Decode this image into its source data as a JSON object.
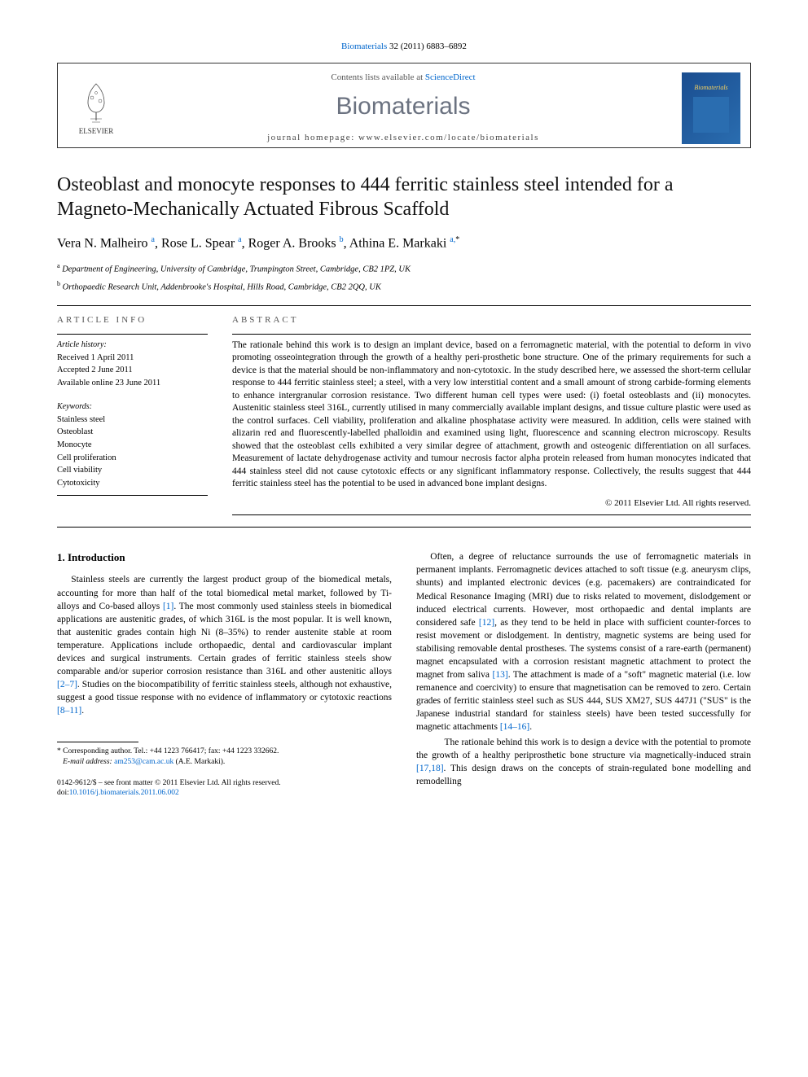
{
  "citation": {
    "journal_link": "Biomaterials",
    "vol_pages": "32 (2011) 6883–6892"
  },
  "header": {
    "publisher": "ELSEVIER",
    "contents_prefix": "Contents lists available at ",
    "contents_link": "ScienceDirect",
    "journal": "Biomaterials",
    "homepage_prefix": "journal homepage: ",
    "homepage_url": "www.elsevier.com/locate/biomaterials",
    "thumb_label": "Biomaterials"
  },
  "article": {
    "title": "Osteoblast and monocyte responses to 444 ferritic stainless steel intended for a Magneto-Mechanically Actuated Fibrous Scaffold",
    "authors_html": "Vera N. Malheiro <sup class='sup-link'>a</sup>, Rose L. Spear <sup class='sup-link'>a</sup>, Roger A. Brooks <sup class='sup-link'>b</sup>, Athina E. Markaki <sup class='sup-link'>a,</sup><sup>*</sup>",
    "affiliations": [
      {
        "sup": "a",
        "text": "Department of Engineering, University of Cambridge, Trumpington Street, Cambridge, CB2 1PZ, UK"
      },
      {
        "sup": "b",
        "text": "Orthopaedic Research Unit, Addenbrooke's Hospital, Hills Road, Cambridge, CB2 2QQ, UK"
      }
    ]
  },
  "info": {
    "heading": "ARTICLE INFO",
    "history_label": "Article history:",
    "received": "Received 1 April 2011",
    "accepted": "Accepted 2 June 2011",
    "online": "Available online 23 June 2011",
    "keywords_label": "Keywords:",
    "keywords": [
      "Stainless steel",
      "Osteoblast",
      "Monocyte",
      "Cell proliferation",
      "Cell viability",
      "Cytotoxicity"
    ]
  },
  "abstract": {
    "heading": "ABSTRACT",
    "text": "The rationale behind this work is to design an implant device, based on a ferromagnetic material, with the potential to deform in vivo promoting osseointegration through the growth of a healthy peri-prosthetic bone structure. One of the primary requirements for such a device is that the material should be non-inflammatory and non-cytotoxic. In the study described here, we assessed the short-term cellular response to 444 ferritic stainless steel; a steel, with a very low interstitial content and a small amount of strong carbide-forming elements to enhance intergranular corrosion resistance. Two different human cell types were used: (i) foetal osteoblasts and (ii) monocytes. Austenitic stainless steel 316L, currently utilised in many commercially available implant designs, and tissue culture plastic were used as the control surfaces. Cell viability, proliferation and alkaline phosphatase activity were measured. In addition, cells were stained with alizarin red and fluorescently-labelled phalloidin and examined using light, fluorescence and scanning electron microscopy. Results showed that the osteoblast cells exhibited a very similar degree of attachment, growth and osteogenic differentiation on all surfaces. Measurement of lactate dehydrogenase activity and tumour necrosis factor alpha protein released from human monocytes indicated that 444 stainless steel did not cause cytotoxic effects or any significant inflammatory response. Collectively, the results suggest that 444 ferritic stainless steel has the potential to be used in advanced bone implant designs.",
    "copyright": "© 2011 Elsevier Ltd. All rights reserved."
  },
  "body": {
    "section_number": "1.",
    "section_title": "Introduction",
    "col1_p1": "Stainless steels are currently the largest product group of the biomedical metals, accounting for more than half of the total biomedical metal market, followed by Ti-alloys and Co-based alloys [1]. The most commonly used stainless steels in biomedical applications are austenitic grades, of which 316L is the most popular. It is well known, that austenitic grades contain high Ni (8–35%) to render austenite stable at room temperature. Applications include orthopaedic, dental and cardiovascular implant devices and surgical instruments. Certain grades of ferritic stainless steels show comparable and/or superior corrosion resistance than 316L and other austenitic alloys [2–7]. Studies on the biocompatibility of ferritic stainless steels, although not exhaustive, suggest a good tissue response with no evidence of inflammatory or cytotoxic reactions [8–11].",
    "col2_p1": "Often, a degree of reluctance surrounds the use of ferromagnetic materials in permanent implants. Ferromagnetic devices attached to soft tissue (e.g. aneurysm clips, shunts) and implanted electronic devices (e.g. pacemakers) are contraindicated for Medical Resonance Imaging (MRI) due to risks related to movement, dislodgement or induced electrical currents. However, most orthopaedic and dental implants are considered safe [12], as they tend to be held in place with sufficient counter-forces to resist movement or dislodgement. In dentistry, magnetic systems are being used for stabilising removable dental prostheses. The systems consist of a rare-earth (permanent) magnet encapsulated with a corrosion resistant magnetic attachment to protect the magnet from saliva [13]. The attachment is made of a \"soft\" magnetic material (i.e. low remanence and coercivity) to ensure that magnetisation can be removed to zero. Certain grades of ferritic stainless steel such as SUS 444, SUS XM27, SUS 447J1 (\"SUS\" is the Japanese industrial standard for stainless steels) have been tested successfully for magnetic attachments [14–16].",
    "col2_p2": "The rationale behind this work is to design a device with the potential to promote the growth of a healthy periprosthetic bone structure via magnetically-induced strain [17,18]. This design draws on the concepts of strain-regulated bone modelling and remodelling"
  },
  "footnote": {
    "star": "*",
    "text": "Corresponding author. Tel.: +44 1223 766417; fax: +44 1223 332662.",
    "email_label": "E-mail address:",
    "email": "am253@cam.ac.uk",
    "email_suffix": "(A.E. Markaki)."
  },
  "footer": {
    "issn": "0142-9612/$ – see front matter © 2011 Elsevier Ltd. All rights reserved.",
    "doi_label": "doi:",
    "doi": "10.1016/j.biomaterials.2011.06.002"
  },
  "colors": {
    "link": "#0066cc",
    "journal_gray": "#6b7280",
    "thumb_bg1": "#1a4d8f",
    "thumb_bg2": "#2a6db0",
    "thumb_label": "#f4d060"
  },
  "cites": {
    "c1": "[1]",
    "c2": "[2–7]",
    "c3": "[8–11]",
    "c4": "[12]",
    "c5": "[13]",
    "c6": "[14–16]",
    "c7": "[17,18]"
  }
}
